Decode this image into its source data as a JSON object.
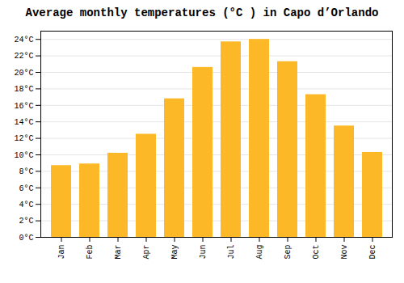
{
  "chart_data": {
    "type": "bar",
    "title": "Average monthly temperatures (°C ) in Capo d’Orlando",
    "categories": [
      "Jan",
      "Feb",
      "Mar",
      "Apr",
      "May",
      "Jun",
      "Jul",
      "Aug",
      "Sep",
      "Oct",
      "Nov",
      "Dec"
    ],
    "values": [
      8.7,
      8.9,
      10.2,
      12.5,
      16.8,
      20.6,
      23.7,
      24.0,
      21.3,
      17.3,
      13.5,
      10.3
    ],
    "color": "#FDB827",
    "ylim": [
      0,
      25
    ],
    "yticks": [
      {
        "value": 0,
        "label": "0°C"
      },
      {
        "value": 2,
        "label": "2°C"
      },
      {
        "value": 4,
        "label": "4°C"
      },
      {
        "value": 6,
        "label": "6°C"
      },
      {
        "value": 8,
        "label": "8°C"
      },
      {
        "value": 10,
        "label": "10°C"
      },
      {
        "value": 12,
        "label": "12°C"
      },
      {
        "value": 14,
        "label": "14°C"
      },
      {
        "value": 16,
        "label": "16°C"
      },
      {
        "value": 18,
        "label": "18°C"
      },
      {
        "value": 20,
        "label": "20°C"
      },
      {
        "value": 22,
        "label": "22°C"
      },
      {
        "value": 24,
        "label": "24°C"
      }
    ],
    "grid": true
  }
}
